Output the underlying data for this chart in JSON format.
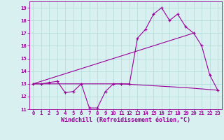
{
  "xlabel": "Windchill (Refroidissement éolien,°C)",
  "bg_color": "#d8f0f0",
  "grid_color": "#b0d8d8",
  "line_color": "#990099",
  "hours": [
    0,
    1,
    2,
    3,
    4,
    5,
    6,
    7,
    8,
    9,
    10,
    11,
    12,
    13,
    14,
    15,
    16,
    17,
    18,
    19,
    20,
    21,
    22,
    23
  ],
  "temp": [
    13,
    13,
    13.1,
    13.2,
    12.3,
    12.4,
    13,
    11.1,
    11.1,
    12.4,
    13,
    13,
    13,
    16.6,
    17.3,
    18.5,
    19,
    18.0,
    18.5,
    17.5,
    17,
    16,
    13.7,
    12.5
  ],
  "line2_x": [
    0,
    20
  ],
  "line2_y": [
    13,
    17.0
  ],
  "line3_x": [
    0,
    11,
    19,
    23
  ],
  "line3_y": [
    13,
    13,
    12.7,
    12.5
  ],
  "ylim": [
    11,
    19.5
  ],
  "xlim": [
    -0.5,
    23.5
  ],
  "yticks": [
    11,
    12,
    13,
    14,
    15,
    16,
    17,
    18,
    19
  ],
  "xticks": [
    0,
    1,
    2,
    3,
    4,
    5,
    6,
    7,
    8,
    9,
    10,
    11,
    12,
    13,
    14,
    15,
    16,
    17,
    18,
    19,
    20,
    21,
    22,
    23
  ],
  "tick_fontsize": 5.2,
  "xlabel_fontsize": 6.0
}
